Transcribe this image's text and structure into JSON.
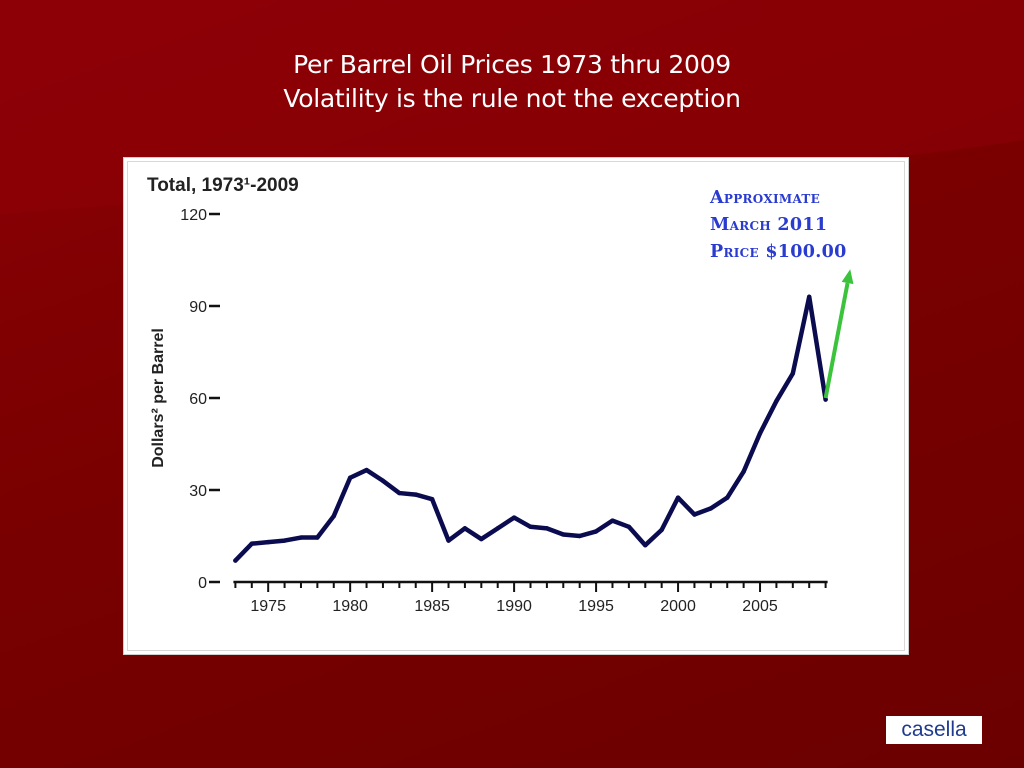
{
  "slide": {
    "title_line1": "Per Barrel Oil Prices 1973 thru 2009",
    "title_line2": "Volatility is the rule not the exception"
  },
  "annotation": {
    "line1": "Approximate",
    "line2": "March 2011",
    "line3": "Price $100.00",
    "color": "#2a3bd0"
  },
  "arrow": {
    "color": "#3cc33c",
    "from": [
      2009,
      60
    ],
    "to": [
      2010.5,
      102
    ]
  },
  "logo": {
    "text": "casella"
  },
  "chart_data": {
    "type": "line",
    "title": "Total, 1973¹-2009",
    "ylabel": "Dollars² per Barrel",
    "xlabel": "",
    "x": [
      1973,
      1974,
      1975,
      1976,
      1977,
      1978,
      1979,
      1980,
      1981,
      1982,
      1983,
      1984,
      1985,
      1986,
      1987,
      1988,
      1989,
      1990,
      1991,
      1992,
      1993,
      1994,
      1995,
      1996,
      1997,
      1998,
      1999,
      2000,
      2001,
      2002,
      2003,
      2004,
      2005,
      2006,
      2007,
      2008,
      2009
    ],
    "series": [
      {
        "values": [
          7,
          12.5,
          13,
          13.5,
          14.5,
          14.5,
          21.5,
          34,
          36.5,
          33,
          29,
          28.5,
          27,
          13.5,
          17.5,
          14,
          17.5,
          21,
          18,
          17.5,
          15.5,
          15,
          16.5,
          20,
          18,
          12,
          17,
          27.5,
          22,
          24,
          27.5,
          36,
          48.5,
          59,
          68,
          93,
          59.5
        ],
        "color": "#0b0b4f"
      }
    ],
    "xlim": [
      1972,
      2010
    ],
    "ylim": [
      0,
      120
    ],
    "yticks": [
      0,
      30,
      60,
      90,
      120
    ],
    "xtick_labels": [
      1975,
      1980,
      1985,
      1990,
      1995,
      2000,
      2005
    ],
    "grid": false,
    "legend": "none"
  }
}
